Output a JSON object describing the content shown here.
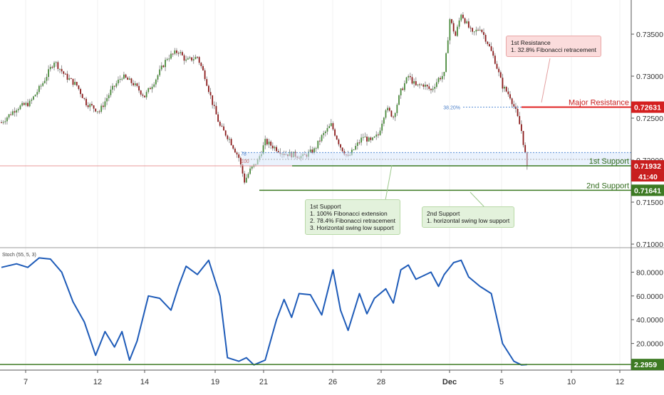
{
  "chart_data": [
    {
      "type": "candlestick",
      "title": "",
      "xlabel": "",
      "ylabel": "",
      "ylim": [
        0.71,
        0.738
      ],
      "y_ticks": [
        "0.73500",
        "0.73000",
        "0.72500",
        "0.72000",
        "0.71500",
        "0.71000"
      ],
      "x_ticks": [
        "7",
        "12",
        "14",
        "19",
        "21",
        "26",
        "28",
        "Dec",
        "5",
        "10",
        "12"
      ],
      "last_price": 0.71932,
      "last_price_label": "0.71932",
      "countdown_label": "41:40",
      "colors": {
        "up": "#4a8a3c",
        "down": "#8b1a1a",
        "resistance": "#e02020",
        "support": "#3d7a23"
      },
      "levels": [
        {
          "label": "Major Resistance",
          "price_label": "0.72631",
          "value": 0.72631
        },
        {
          "label": "1st Support",
          "price_label": "0.71932",
          "value": 0.71932
        },
        {
          "label": "2nd Support",
          "price_label": "0.71641",
          "value": 0.71641
        }
      ],
      "fib_labels": [
        {
          "label": "38.20%",
          "value": 0.72631
        },
        {
          "label": "78",
          "value": 0.7208
        },
        {
          "label": "100",
          "value": 0.7199
        }
      ],
      "waypoints": [
        [
          0,
          0.7245
        ],
        [
          8,
          0.7262
        ],
        [
          15,
          0.7268
        ],
        [
          22,
          0.7292
        ],
        [
          28,
          0.7318
        ],
        [
          34,
          0.73
        ],
        [
          40,
          0.7289
        ],
        [
          45,
          0.7268
        ],
        [
          52,
          0.7258
        ],
        [
          58,
          0.7282
        ],
        [
          64,
          0.73
        ],
        [
          70,
          0.7291
        ],
        [
          76,
          0.7276
        ],
        [
          82,
          0.7297
        ],
        [
          88,
          0.7322
        ],
        [
          94,
          0.733
        ],
        [
          98,
          0.7318
        ],
        [
          104,
          0.7323
        ],
        [
          108,
          0.73
        ],
        [
          112,
          0.7268
        ],
        [
          116,
          0.724
        ],
        [
          121,
          0.7225
        ],
        [
          126,
          0.7203
        ],
        [
          129,
          0.7175
        ],
        [
          132,
          0.7188
        ],
        [
          136,
          0.7199
        ],
        [
          140,
          0.7222
        ],
        [
          145,
          0.7215
        ],
        [
          150,
          0.7208
        ],
        [
          156,
          0.7206
        ],
        [
          160,
          0.7204
        ],
        [
          166,
          0.7212
        ],
        [
          170,
          0.7228
        ],
        [
          175,
          0.7242
        ],
        [
          180,
          0.7216
        ],
        [
          184,
          0.7203
        ],
        [
          188,
          0.7216
        ],
        [
          192,
          0.7228
        ],
        [
          196,
          0.7222
        ],
        [
          200,
          0.723
        ],
        [
          204,
          0.7262
        ],
        [
          208,
          0.7252
        ],
        [
          212,
          0.7282
        ],
        [
          216,
          0.73
        ],
        [
          220,
          0.7288
        ],
        [
          224,
          0.729
        ],
        [
          228,
          0.7283
        ],
        [
          232,
          0.7297
        ],
        [
          235,
          0.7302
        ],
        [
          238,
          0.7368
        ],
        [
          241,
          0.7348
        ],
        [
          244,
          0.7375
        ],
        [
          247,
          0.7362
        ],
        [
          250,
          0.735
        ],
        [
          254,
          0.7358
        ],
        [
          258,
          0.734
        ],
        [
          262,
          0.7318
        ],
        [
          266,
          0.7288
        ],
        [
          270,
          0.7276
        ],
        [
          273,
          0.7258
        ],
        [
          276,
          0.7235
        ],
        [
          279,
          0.7193
        ]
      ]
    },
    {
      "type": "line",
      "title": "Stoch (55, 5, 3)",
      "ylim": [
        0,
        100
      ],
      "y_ticks": [
        "80.0000",
        "60.0000",
        "40.0000",
        "20.0000"
      ],
      "last_value": 2.2959,
      "last_value_label": "2.2959",
      "series": [
        {
          "color": "#1e5bb8",
          "points": [
            [
              0,
              84
            ],
            [
              8,
              87
            ],
            [
              14,
              84
            ],
            [
              20,
              92
            ],
            [
              26,
              91
            ],
            [
              32,
              80
            ],
            [
              38,
              55
            ],
            [
              44,
              38
            ],
            [
              50,
              10
            ],
            [
              55,
              30
            ],
            [
              60,
              17
            ],
            [
              64,
              30
            ],
            [
              68,
              6
            ],
            [
              72,
              22
            ],
            [
              78,
              60
            ],
            [
              84,
              58
            ],
            [
              90,
              48
            ],
            [
              94,
              68
            ],
            [
              98,
              85
            ],
            [
              104,
              78
            ],
            [
              110,
              90
            ],
            [
              116,
              60
            ],
            [
              120,
              8
            ],
            [
              126,
              5
            ],
            [
              130,
              8
            ],
            [
              134,
              2
            ],
            [
              140,
              6
            ],
            [
              146,
              40
            ],
            [
              150,
              57
            ],
            [
              154,
              42
            ],
            [
              158,
              62
            ],
            [
              164,
              61
            ],
            [
              170,
              44
            ],
            [
              176,
              82
            ],
            [
              180,
              48
            ],
            [
              184,
              31
            ],
            [
              190,
              62
            ],
            [
              194,
              45
            ],
            [
              198,
              58
            ],
            [
              204,
              66
            ],
            [
              208,
              54
            ],
            [
              212,
              82
            ],
            [
              216,
              86
            ],
            [
              220,
              74
            ],
            [
              224,
              77
            ],
            [
              228,
              80
            ],
            [
              232,
              68
            ],
            [
              235,
              78
            ],
            [
              240,
              88
            ],
            [
              244,
              90
            ],
            [
              248,
              76
            ],
            [
              254,
              68
            ],
            [
              260,
              62
            ],
            [
              266,
              20
            ],
            [
              272,
              5
            ],
            [
              276,
              2
            ],
            [
              279,
              2.3
            ]
          ]
        }
      ]
    }
  ],
  "annotations": [
    {
      "lines": [
        "1st Resistance",
        "1. 32.8% Fibonacci retracement"
      ]
    },
    {
      "lines": [
        "1st Support",
        "1. 100%  Fibonacci extension",
        "2. 78.4% Fibonacci retracement",
        "3. Horizontal swing low support"
      ]
    },
    {
      "lines": [
        "2nd Support",
        "1. horizontal swing low support"
      ]
    }
  ]
}
